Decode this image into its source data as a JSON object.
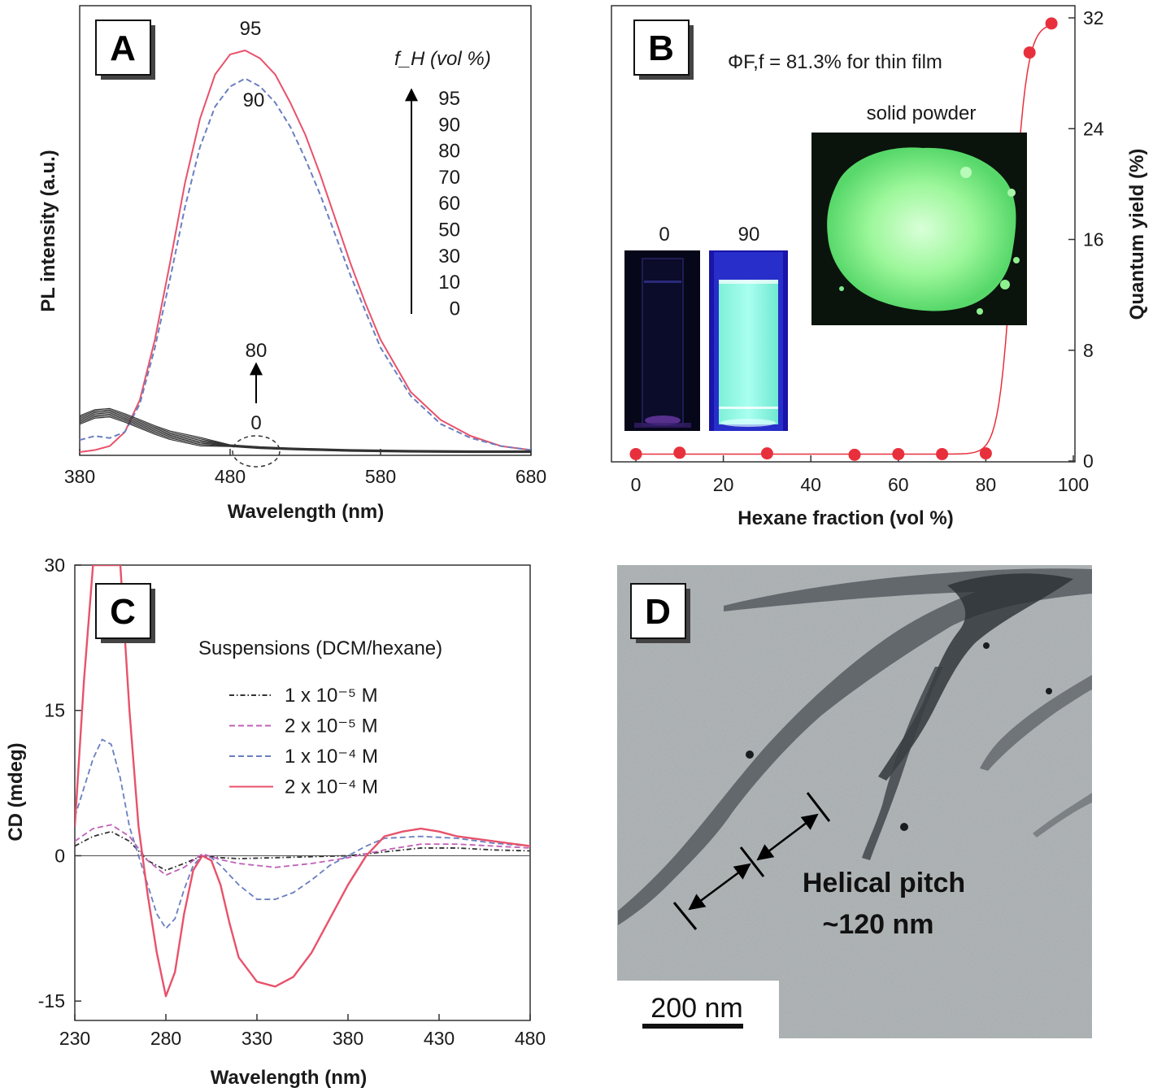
{
  "chart_data": [
    {
      "panel": "A",
      "type": "line",
      "xlabel": "Wavelength (nm)",
      "ylabel": "PL intensity (a.u.)",
      "xlim": [
        380,
        680
      ],
      "ylim": [
        0,
        100
      ],
      "xticks": [
        380,
        480,
        580,
        680
      ],
      "legend_title": "f_H (vol %)",
      "legend_entries": [
        "95",
        "90",
        "80",
        "70",
        "60",
        "50",
        "30",
        "10",
        "0"
      ],
      "annotations": [
        "95",
        "90",
        "80",
        "0"
      ],
      "series": [
        {
          "name": "95",
          "color": "#e8526b",
          "dash": "solid",
          "x": [
            380,
            390,
            400,
            410,
            420,
            430,
            440,
            450,
            460,
            470,
            480,
            490,
            500,
            510,
            520,
            530,
            540,
            550,
            560,
            570,
            580,
            600,
            620,
            640,
            660,
            680
          ],
          "y": [
            0,
            0.5,
            1.5,
            5,
            13,
            28,
            47,
            67,
            83,
            94,
            99,
            100,
            98,
            94,
            87,
            79,
            69,
            58,
            47,
            37,
            28,
            15,
            8,
            4,
            1.5,
            0.5
          ]
        },
        {
          "name": "90",
          "color": "#6a7fc0",
          "dash": "dashed",
          "x": [
            380,
            390,
            400,
            410,
            420,
            430,
            440,
            450,
            460,
            470,
            480,
            490,
            500,
            510,
            520,
            530,
            540,
            550,
            560,
            570,
            580,
            600,
            620,
            640,
            660,
            680
          ],
          "y": [
            3,
            4,
            3.5,
            5,
            12,
            26,
            43,
            61,
            76,
            86,
            91,
            93,
            91,
            87,
            81,
            73,
            64,
            54,
            44,
            35,
            26,
            14,
            7,
            3.5,
            1.5,
            0.5
          ]
        },
        {
          "name": "0-80",
          "color": "#333333",
          "dash": "solid",
          "multiplicity": 7,
          "x": [
            380,
            390,
            400,
            410,
            420,
            430,
            440,
            460,
            480,
            500,
            520,
            540,
            560,
            600,
            640,
            680
          ],
          "y": [
            8,
            9.5,
            9.8,
            8.5,
            7,
            5.5,
            4.2,
            2.6,
            1.6,
            1.1,
            0.8,
            0.6,
            0.4,
            0.2,
            0.1,
            0.1
          ]
        }
      ]
    },
    {
      "panel": "B",
      "type": "scatter",
      "xlabel": "Hexane fraction (vol %)",
      "ylabel": "Quantum yield (%)",
      "xlim": [
        0,
        100
      ],
      "ylim": [
        0,
        32
      ],
      "xticks": [
        0,
        20,
        40,
        60,
        80,
        100
      ],
      "yticks": [
        0,
        8,
        16,
        24,
        32
      ],
      "annotations": [
        "ΦF,f = 81.3% for thin film",
        "solid powder",
        "0",
        "90"
      ],
      "series": [
        {
          "name": "",
          "color": "#e8303c",
          "x": [
            0,
            10,
            30,
            50,
            60,
            70,
            80,
            90,
            95
          ],
          "y": [
            0.5,
            0.6,
            0.55,
            0.45,
            0.5,
            0.5,
            0.55,
            29.5,
            31.6
          ]
        }
      ]
    },
    {
      "panel": "C",
      "type": "line",
      "xlabel": "Wavelength (nm)",
      "ylabel": "CD (mdeg)",
      "xlim": [
        230,
        480
      ],
      "ylim": [
        -17,
        30
      ],
      "xticks": [
        230,
        280,
        330,
        380,
        430,
        480
      ],
      "yticks": [
        -15,
        0,
        15,
        30
      ],
      "legend_title": "Suspensions (DCM/hexane)",
      "series": [
        {
          "name": "1 x 10⁻⁵ M",
          "color": "#333333",
          "dash": "dashdot",
          "x": [
            230,
            240,
            250,
            260,
            270,
            280,
            290,
            300,
            310,
            320,
            340,
            360,
            380,
            400,
            420,
            440,
            460,
            480
          ],
          "y": [
            1,
            2,
            2.5,
            1.5,
            -0.5,
            -1.5,
            -0.8,
            0,
            -0.2,
            -0.3,
            -0.2,
            -0.1,
            0,
            0.4,
            0.8,
            0.8,
            0.6,
            0.5
          ]
        },
        {
          "name": "2 x 10⁻⁵ M",
          "color": "#c060b8",
          "dash": "dashed",
          "x": [
            230,
            240,
            250,
            260,
            270,
            280,
            290,
            300,
            310,
            320,
            340,
            360,
            380,
            400,
            420,
            440,
            460,
            480
          ],
          "y": [
            1.5,
            2.8,
            3.2,
            2,
            -0.5,
            -2,
            -1.2,
            0.2,
            -0.4,
            -0.8,
            -1.2,
            -0.8,
            -0.2,
            0.6,
            1.2,
            1.2,
            1,
            0.8
          ]
        },
        {
          "name": "1 x 10⁻⁴ M",
          "color": "#6a7fc0",
          "dash": "dashed",
          "x": [
            230,
            235,
            240,
            245,
            250,
            255,
            260,
            265,
            270,
            275,
            280,
            285,
            290,
            295,
            300,
            305,
            310,
            320,
            330,
            340,
            350,
            360,
            370,
            380,
            390,
            400,
            420,
            440,
            460,
            480
          ],
          "y": [
            4,
            7,
            10,
            12,
            11.5,
            8,
            3,
            0,
            -3,
            -6,
            -7.5,
            -6.5,
            -3.5,
            -1,
            0,
            -0.2,
            -1,
            -3,
            -4.5,
            -4.5,
            -3.8,
            -2.5,
            -1,
            0,
            1,
            1.8,
            2,
            1.8,
            1.3,
            1
          ]
        },
        {
          "name": "2 x 10⁻⁴ M",
          "color": "#e8526b",
          "dash": "solid",
          "x": [
            230,
            235,
            240,
            245,
            250,
            255,
            260,
            265,
            270,
            275,
            280,
            285,
            290,
            295,
            300,
            305,
            310,
            315,
            320,
            330,
            340,
            350,
            360,
            370,
            380,
            390,
            400,
            410,
            420,
            430,
            440,
            460,
            480
          ],
          "y": [
            3,
            18,
            30,
            30,
            30,
            30,
            15,
            3,
            -4,
            -10,
            -14.5,
            -12,
            -6,
            -1.5,
            0,
            -0.5,
            -3,
            -7,
            -10.5,
            -13,
            -13.5,
            -12.5,
            -10,
            -6.5,
            -3,
            0,
            2,
            2.5,
            2.8,
            2.5,
            2,
            1.5,
            1
          ]
        }
      ]
    }
  ],
  "panels": {
    "A": {
      "letter": "A"
    },
    "B": {
      "letter": "B"
    },
    "C": {
      "letter": "C"
    },
    "D": {
      "letter": "D",
      "pitch_text_1": "Helical pitch",
      "pitch_text_2": "~120 nm",
      "scale_bar": "200 nm"
    }
  },
  "colors": {
    "red_curve": "#e8526b",
    "blue_dash": "#6a7fc0",
    "magenta_dash": "#c060b8",
    "dark_curve": "#333333",
    "uv_green": "#8ff5a8",
    "tem_gray": "#b8bcbe"
  }
}
